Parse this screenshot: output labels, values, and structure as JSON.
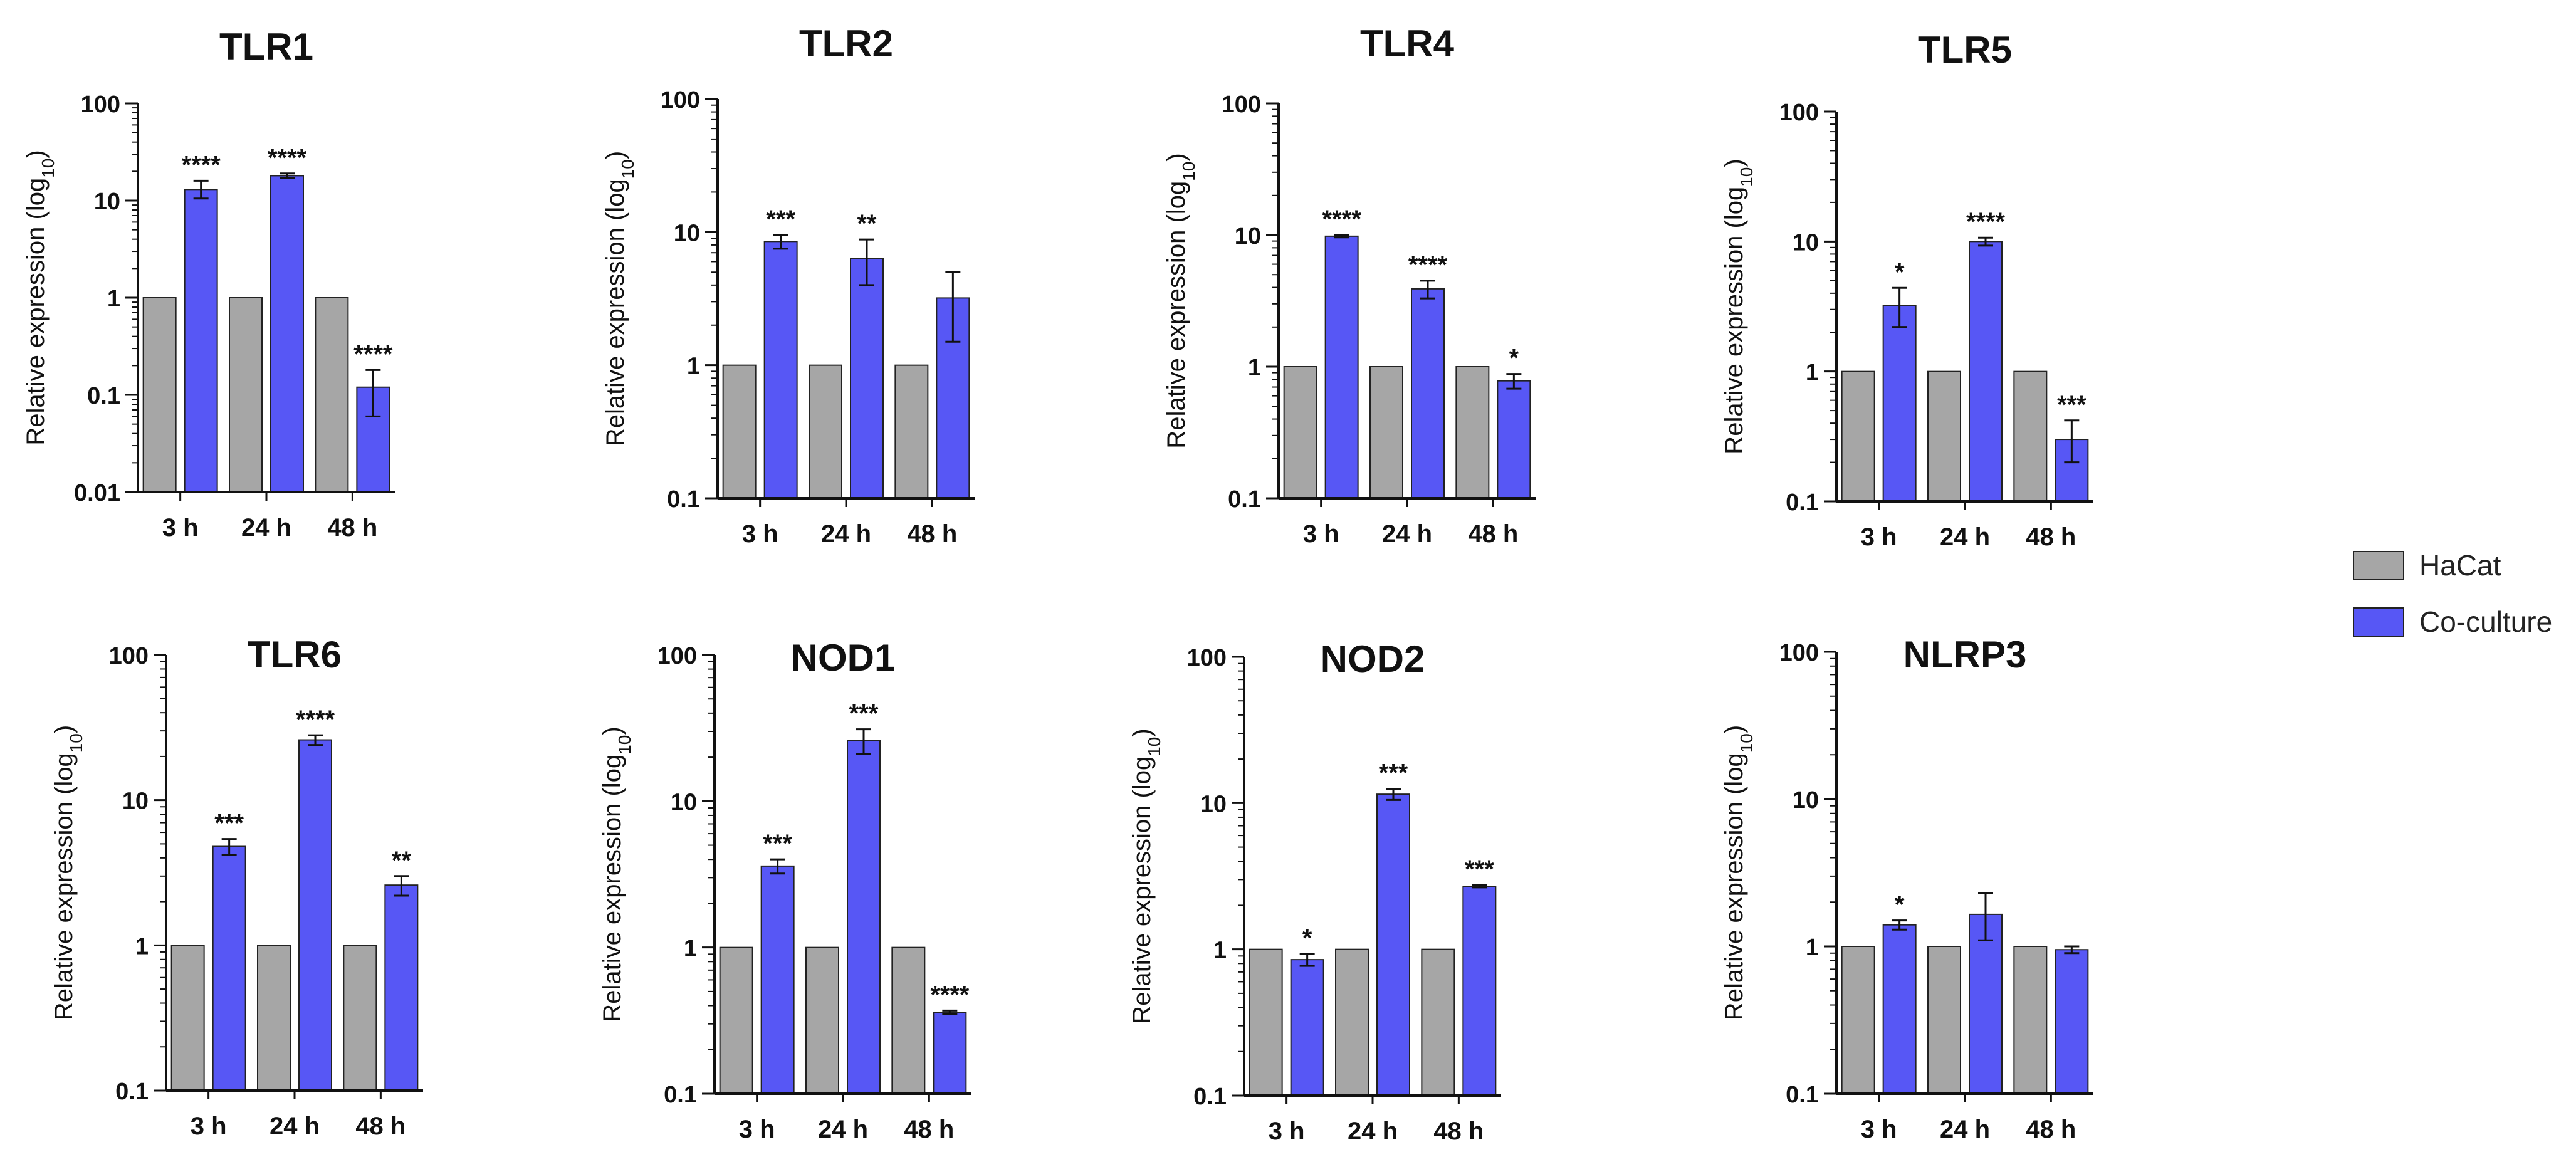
{
  "colors": {
    "HaCat": "#a6a6a6",
    "Co-culture": "#5757f5",
    "axis": "#111111"
  },
  "legend": {
    "placement": "right",
    "items": [
      "HaCat",
      "Co-culture"
    ]
  },
  "chart_data": [
    {
      "type": "bar",
      "title": "TLR1",
      "yscale": "log",
      "ylabel": "Relative expression (log10)",
      "ylim": [
        0.01,
        100
      ],
      "yticks": [
        "0.01",
        "0.1",
        "1",
        "10",
        "100"
      ],
      "categories": [
        "3 h",
        "24 h",
        "48 h"
      ],
      "series": [
        {
          "name": "HaCat",
          "values": [
            1,
            1,
            1
          ]
        },
        {
          "name": "Co-culture",
          "values": [
            13,
            18,
            0.12
          ],
          "error": [
            [
              10.5,
              16
            ],
            [
              17,
              19
            ],
            [
              0.06,
              0.18
            ]
          ],
          "significance": [
            "****",
            "****",
            "****"
          ]
        }
      ]
    },
    {
      "type": "bar",
      "title": "TLR2",
      "yscale": "log",
      "ylabel": "Relative expression (log10)",
      "ylim": [
        0.1,
        100
      ],
      "yticks": [
        "0.1",
        "1",
        "10",
        "100"
      ],
      "categories": [
        "3 h",
        "24 h",
        "48 h"
      ],
      "series": [
        {
          "name": "HaCat",
          "values": [
            1,
            1,
            1
          ]
        },
        {
          "name": "Co-culture",
          "values": [
            8.5,
            6.3,
            3.2
          ],
          "error": [
            [
              7.5,
              9.5
            ],
            [
              4.0,
              8.8
            ],
            [
              1.5,
              5.0
            ]
          ],
          "significance": [
            "***",
            "**",
            ""
          ]
        }
      ]
    },
    {
      "type": "bar",
      "title": "TLR4",
      "yscale": "log",
      "ylabel": "Relative expression (log10)",
      "ylim": [
        0.1,
        100
      ],
      "yticks": [
        "0.1",
        "1",
        "10",
        "100"
      ],
      "categories": [
        "3 h",
        "24 h",
        "48 h"
      ],
      "series": [
        {
          "name": "HaCat",
          "values": [
            1,
            1,
            1
          ]
        },
        {
          "name": "Co-culture",
          "values": [
            9.8,
            3.9,
            0.78
          ],
          "error": [
            [
              9.6,
              10
            ],
            [
              3.3,
              4.5
            ],
            [
              0.68,
              0.88
            ]
          ],
          "significance": [
            "****",
            "****",
            "*"
          ]
        }
      ]
    },
    {
      "type": "bar",
      "title": "TLR5",
      "yscale": "log",
      "ylabel": "Relative expression (log10)",
      "ylim": [
        0.1,
        100
      ],
      "yticks": [
        "0.1",
        "1",
        "10",
        "100"
      ],
      "categories": [
        "3 h",
        "24 h",
        "48 h"
      ],
      "series": [
        {
          "name": "HaCat",
          "values": [
            1,
            1,
            1
          ]
        },
        {
          "name": "Co-culture",
          "values": [
            3.2,
            10,
            0.3
          ],
          "error": [
            [
              2.2,
              4.4
            ],
            [
              9.3,
              10.7
            ],
            [
              0.2,
              0.42
            ]
          ],
          "significance": [
            "*",
            "****",
            "***"
          ]
        }
      ]
    },
    {
      "type": "bar",
      "title": "TLR6",
      "yscale": "log",
      "ylabel": "Relative expression (log10)",
      "ylim": [
        0.1,
        100
      ],
      "yticks": [
        "0.1",
        "1",
        "10",
        "100"
      ],
      "categories": [
        "3 h",
        "24 h",
        "48 h"
      ],
      "series": [
        {
          "name": "HaCat",
          "values": [
            1,
            1,
            1
          ]
        },
        {
          "name": "Co-culture",
          "values": [
            4.8,
            26,
            2.6
          ],
          "error": [
            [
              4.2,
              5.4
            ],
            [
              24,
              28
            ],
            [
              2.2,
              3.0
            ]
          ],
          "significance": [
            "***",
            "****",
            "**"
          ]
        }
      ]
    },
    {
      "type": "bar",
      "title": "NOD1",
      "yscale": "log",
      "ylabel": "Relative expression (log10)",
      "ylim": [
        0.1,
        100
      ],
      "yticks": [
        "0.1",
        "1",
        "10",
        "100"
      ],
      "categories": [
        "3 h",
        "24 h",
        "48 h"
      ],
      "series": [
        {
          "name": "HaCat",
          "values": [
            1,
            1,
            1
          ]
        },
        {
          "name": "Co-culture",
          "values": [
            3.6,
            26,
            0.36
          ],
          "error": [
            [
              3.2,
              4.0
            ],
            [
              21,
              31
            ],
            [
              0.35,
              0.37
            ]
          ],
          "significance": [
            "***",
            "***",
            "****"
          ]
        }
      ]
    },
    {
      "type": "bar",
      "title": "NOD2",
      "yscale": "log",
      "ylabel": "Relative expression (log10)",
      "ylim": [
        0.1,
        100
      ],
      "yticks": [
        "0.1",
        "1",
        "10",
        "100"
      ],
      "categories": [
        "3 h",
        "24 h",
        "48 h"
      ],
      "series": [
        {
          "name": "HaCat",
          "values": [
            1,
            1,
            1
          ]
        },
        {
          "name": "Co-culture",
          "values": [
            0.85,
            11.5,
            2.7
          ],
          "error": [
            [
              0.77,
              0.93
            ],
            [
              10.5,
              12.5
            ],
            [
              2.65,
              2.75
            ]
          ],
          "significance": [
            "*",
            "***",
            "***"
          ]
        }
      ]
    },
    {
      "type": "bar",
      "title": "NLRP3",
      "yscale": "log",
      "ylabel": "Relative expression (log10)",
      "ylim": [
        0.1,
        100
      ],
      "yticks": [
        "0.1",
        "1",
        "10",
        "100"
      ],
      "categories": [
        "3 h",
        "24 h",
        "48 h"
      ],
      "series": [
        {
          "name": "HaCat",
          "values": [
            1,
            1,
            1
          ]
        },
        {
          "name": "Co-culture",
          "values": [
            1.4,
            1.65,
            0.95
          ],
          "error": [
            [
              1.3,
              1.5
            ],
            [
              1.1,
              2.3
            ],
            [
              0.9,
              1.0
            ]
          ],
          "significance": [
            "*",
            "",
            ""
          ]
        }
      ]
    }
  ]
}
